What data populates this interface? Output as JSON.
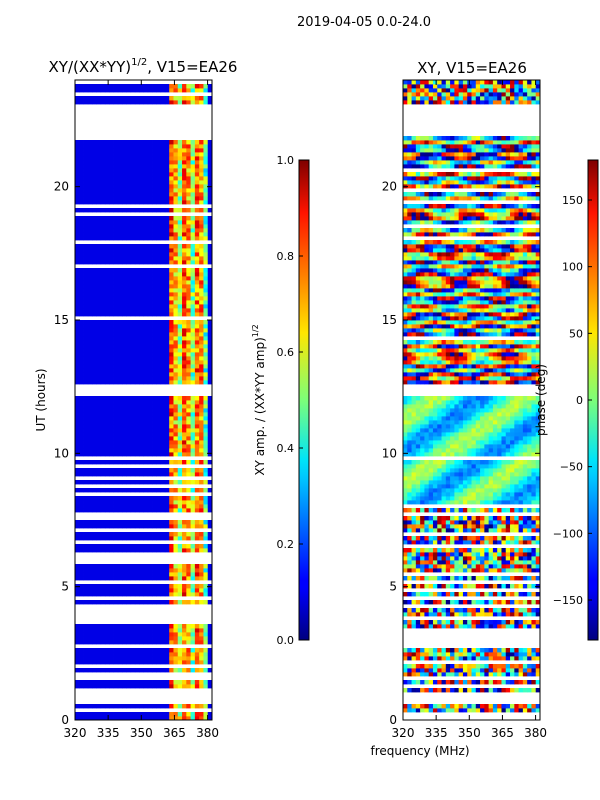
{
  "suptitle": "2019-04-05 0.0-24.0",
  "xlabel_shared": "frequency (MHz)",
  "chart_data": [
    {
      "type": "heatmap",
      "title_main": "XY/(XX*YY)",
      "title_exp": "1/2",
      "title_tail": ", V15=EA26",
      "xlim": [
        320,
        382
      ],
      "ylim": [
        0,
        24
      ],
      "xticks": [
        320,
        335,
        350,
        365,
        380
      ],
      "yticks": [
        0,
        5,
        10,
        15,
        20
      ],
      "ylabel": "UT (hours)",
      "colorbar": {
        "label_main": "XY amp. / (XX*YY amp)",
        "label_exp": "1/2",
        "min": 0.0,
        "max": 1.0,
        "ticks": [
          0.0,
          0.2,
          0.4,
          0.6,
          0.8,
          1.0
        ],
        "tick_labels": [
          "0.0",
          "0.2",
          "0.4",
          "0.6",
          "0.8",
          "1.0"
        ],
        "colormap": "jet"
      },
      "blank_ut_ranges": [
        [
          21.9,
          23.1
        ],
        [
          12.2,
          12.55
        ],
        [
          9.8,
          9.95
        ],
        [
          7.65,
          7.85
        ]
      ],
      "signal_channel_range_mhz": [
        362,
        381
      ],
      "background_level": 0.1
    },
    {
      "type": "heatmap",
      "title_main": "XY, V15=EA26",
      "xlim": [
        320,
        382
      ],
      "ylim": [
        0,
        24
      ],
      "xticks": [
        320,
        335,
        350,
        365,
        380
      ],
      "yticks": [
        0,
        5,
        10,
        15,
        20
      ],
      "colorbar": {
        "label": "phase (deg)",
        "min": -180,
        "max": 180,
        "ticks": [
          -150,
          -100,
          -50,
          0,
          50,
          100,
          150
        ],
        "tick_labels": [
          "−150",
          "−100",
          "−50",
          "0",
          "50",
          "100",
          "150"
        ],
        "colormap": "jet"
      },
      "blank_ut_ranges": [
        [
          21.9,
          23.1
        ],
        [
          12.2,
          12.55
        ],
        [
          9.8,
          9.95
        ],
        [
          7.65,
          7.85
        ]
      ]
    }
  ]
}
